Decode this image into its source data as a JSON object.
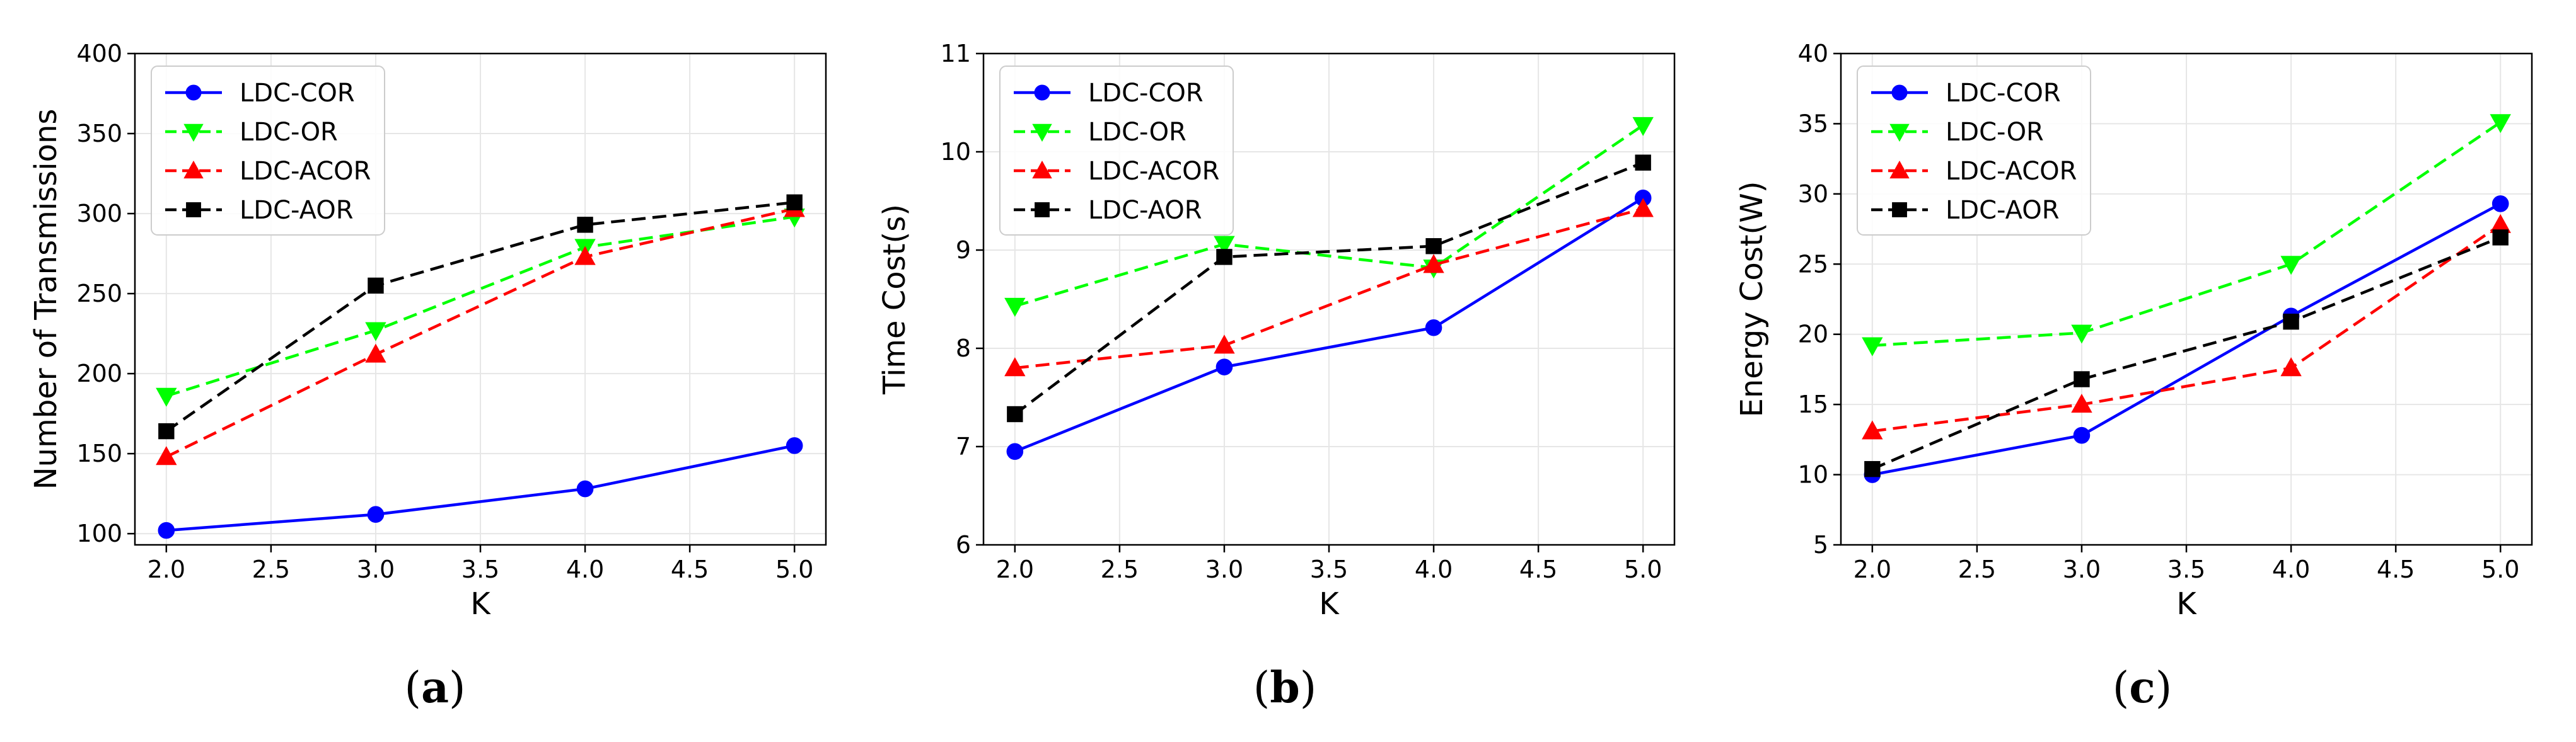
{
  "chart_data": [
    {
      "type": "line",
      "caption": "a",
      "xlabel": "K",
      "ylabel": "Number of Transmissions",
      "xlim": [
        1.85,
        5.15
      ],
      "ylim": [
        93,
        400
      ],
      "xticks": [
        2.0,
        2.5,
        3.0,
        3.5,
        4.0,
        4.5,
        5.0
      ],
      "xtick_labels": [
        "2.0",
        "2.5",
        "3.0",
        "3.5",
        "4.0",
        "4.5",
        "5.0"
      ],
      "yticks": [
        100,
        150,
        200,
        250,
        300,
        350,
        400
      ],
      "ytick_labels": [
        "100",
        "150",
        "200",
        "250",
        "300",
        "350",
        "400"
      ],
      "grid": true,
      "legend": "top-left",
      "x": [
        2.0,
        3.0,
        4.0,
        5.0
      ],
      "series": [
        {
          "name": "LDC-COR",
          "values": [
            102,
            112,
            128,
            155
          ]
        },
        {
          "name": "LDC-OR",
          "values": [
            186,
            227,
            279,
            298
          ]
        },
        {
          "name": "LDC-ACOR",
          "values": [
            148,
            212,
            273,
            303
          ]
        },
        {
          "name": "LDC-AOR",
          "values": [
            164,
            255,
            293,
            307
          ]
        }
      ]
    },
    {
      "type": "line",
      "caption": "b",
      "xlabel": "K",
      "ylabel": "Time Cost(s)",
      "xlim": [
        1.85,
        5.15
      ],
      "ylim": [
        6,
        11
      ],
      "xticks": [
        2.0,
        2.5,
        3.0,
        3.5,
        4.0,
        4.5,
        5.0
      ],
      "xtick_labels": [
        "2.0",
        "2.5",
        "3.0",
        "3.5",
        "4.0",
        "4.5",
        "5.0"
      ],
      "yticks": [
        6,
        7,
        8,
        9,
        10,
        11
      ],
      "ytick_labels": [
        "6",
        "7",
        "8",
        "9",
        "10",
        "11"
      ],
      "grid": true,
      "legend": "top-left",
      "x": [
        2.0,
        3.0,
        4.0,
        5.0
      ],
      "series": [
        {
          "name": "LDC-COR",
          "values": [
            6.95,
            7.81,
            8.21,
            9.53
          ]
        },
        {
          "name": "LDC-OR",
          "values": [
            8.43,
            9.06,
            8.82,
            10.27
          ]
        },
        {
          "name": "LDC-ACOR",
          "values": [
            7.8,
            8.03,
            8.85,
            9.42
          ]
        },
        {
          "name": "LDC-AOR",
          "values": [
            7.33,
            8.93,
            9.04,
            9.89
          ]
        }
      ]
    },
    {
      "type": "line",
      "caption": "c",
      "xlabel": "K",
      "ylabel": "Energy Cost(W)",
      "xlim": [
        1.85,
        5.15
      ],
      "ylim": [
        5,
        40
      ],
      "xticks": [
        2.0,
        2.5,
        3.0,
        3.5,
        4.0,
        4.5,
        5.0
      ],
      "xtick_labels": [
        "2.0",
        "2.5",
        "3.0",
        "3.5",
        "4.0",
        "4.5",
        "5.0"
      ],
      "yticks": [
        5,
        10,
        15,
        20,
        25,
        30,
        35,
        40
      ],
      "ytick_labels": [
        "5",
        "10",
        "15",
        "20",
        "25",
        "30",
        "35",
        "40"
      ],
      "grid": true,
      "legend": "top-left",
      "x": [
        2.0,
        3.0,
        4.0,
        5.0
      ],
      "series": [
        {
          "name": "LDC-COR",
          "values": [
            10.0,
            12.8,
            21.3,
            29.3
          ]
        },
        {
          "name": "LDC-OR",
          "values": [
            19.2,
            20.1,
            25.0,
            35.1
          ]
        },
        {
          "name": "LDC-ACOR",
          "values": [
            13.1,
            15.0,
            17.6,
            27.8
          ]
        },
        {
          "name": "LDC-AOR",
          "values": [
            10.4,
            16.8,
            20.9,
            26.9
          ]
        }
      ]
    }
  ],
  "series_style": [
    {
      "color": "#0000ff",
      "dash": "",
      "marker": "circle"
    },
    {
      "color": "#00ff00",
      "dash": "22 11",
      "marker": "triangle-down"
    },
    {
      "color": "#ff0000",
      "dash": "22 11",
      "marker": "triangle-up"
    },
    {
      "color": "#000000",
      "dash": "22 11",
      "marker": "square"
    }
  ]
}
